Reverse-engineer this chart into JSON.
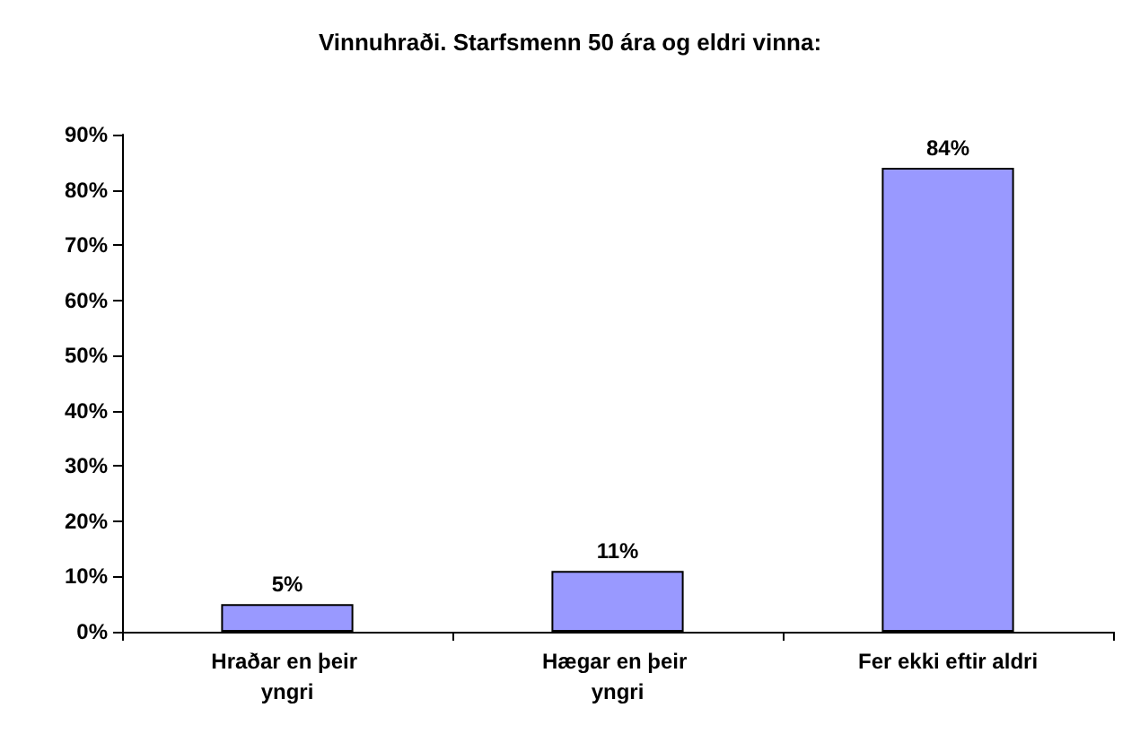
{
  "chart_data": {
    "type": "bar",
    "title": "Vinnuhraði. Starfsmenn 50 ára og eldri vinna:",
    "categories": [
      "Hraðar en þeir yngri",
      "Hægar en þeir yngri",
      "Fer ekki eftir aldri"
    ],
    "values": [
      5,
      11,
      84
    ],
    "value_labels": [
      "5%",
      "11%",
      "84%"
    ],
    "color": "#9999ff",
    "ylim": [
      0,
      90
    ],
    "yticks": [
      {
        "value": 0,
        "label": "0%"
      },
      {
        "value": 10,
        "label": "10%"
      },
      {
        "value": 20,
        "label": "20%"
      },
      {
        "value": 30,
        "label": "30%"
      },
      {
        "value": 40,
        "label": "40%"
      },
      {
        "value": 50,
        "label": "50%"
      },
      {
        "value": 60,
        "label": "60%"
      },
      {
        "value": 70,
        "label": "70%"
      },
      {
        "value": 80,
        "label": "80%"
      },
      {
        "value": 90,
        "label": "90%"
      }
    ],
    "grid": false
  }
}
